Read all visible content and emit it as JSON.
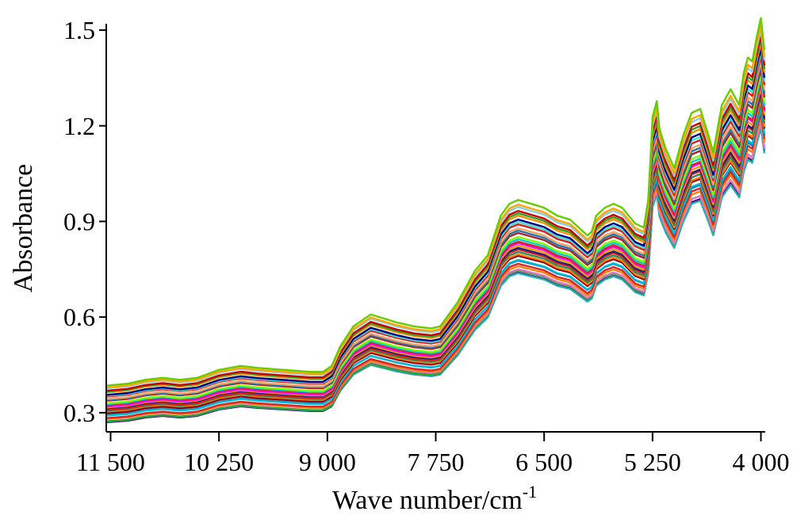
{
  "chart_data": {
    "type": "line",
    "title": "",
    "xlabel": "Wave number/cm",
    "xlabel_superscript": "-1",
    "ylabel": "Absorbance",
    "xlim": [
      11550,
      3950
    ],
    "ylim": [
      0.24,
      1.52
    ],
    "x_reversed": true,
    "grid": false,
    "legend": "none",
    "x_ticks": [
      11500,
      10250,
      9000,
      7750,
      6500,
      5250,
      4000
    ],
    "x_tick_labels": [
      "11 500",
      "10 250",
      "9 000",
      "7 750",
      "6 500",
      "5 250",
      "4 000"
    ],
    "y_ticks": [
      0.3,
      0.6,
      0.9,
      1.2,
      1.5
    ],
    "y_tick_labels": [
      "0.3",
      "0.6",
      "0.9",
      "1.2",
      "1.5"
    ],
    "x": [
      11550,
      11300,
      11100,
      10900,
      10700,
      10500,
      10250,
      10000,
      9800,
      9500,
      9200,
      9050,
      8950,
      8850,
      8700,
      8500,
      8350,
      8200,
      8000,
      7800,
      7700,
      7600,
      7500,
      7300,
      7150,
      7000,
      6900,
      6800,
      6650,
      6500,
      6350,
      6200,
      6100,
      6000,
      5950,
      5900,
      5800,
      5700,
      5600,
      5450,
      5350,
      5300,
      5270,
      5250,
      5200,
      5170,
      5100,
      5000,
      4900,
      4800,
      4700,
      4600,
      4550,
      4500,
      4450,
      4400,
      4350,
      4300,
      4250,
      4200,
      4150,
      4100,
      4050,
      4000,
      3960
    ],
    "base_spectrum": [
      0.27,
      0.275,
      0.285,
      0.29,
      0.285,
      0.29,
      0.31,
      0.32,
      0.315,
      0.31,
      0.305,
      0.305,
      0.32,
      0.37,
      0.42,
      0.45,
      0.44,
      0.43,
      0.42,
      0.415,
      0.42,
      0.45,
      0.48,
      0.56,
      0.6,
      0.7,
      0.73,
      0.74,
      0.73,
      0.72,
      0.7,
      0.69,
      0.67,
      0.65,
      0.66,
      0.7,
      0.72,
      0.73,
      0.72,
      0.68,
      0.67,
      0.74,
      0.86,
      0.95,
      0.99,
      0.92,
      0.87,
      0.82,
      0.9,
      0.96,
      0.97,
      0.9,
      0.86,
      0.92,
      0.98,
      1.0,
      1.02,
      1.0,
      0.98,
      1.06,
      1.1,
      1.09,
      1.15,
      1.2,
      1.12
    ],
    "series": [
      {
        "scale": 1.0,
        "offset": 0.0,
        "color": "#4b0082"
      },
      {
        "scale": 0.99,
        "offset": 0.005,
        "color": "#20b2aa"
      },
      {
        "scale": 1.01,
        "offset": 0.0,
        "color": "#2ca02c"
      },
      {
        "scale": 1.0,
        "offset": 0.01,
        "color": "#e377c2"
      },
      {
        "scale": 1.02,
        "offset": 0.005,
        "color": "#ff7f0e"
      },
      {
        "scale": 1.03,
        "offset": 0.005,
        "color": "#d62728"
      },
      {
        "scale": 1.03,
        "offset": 0.015,
        "color": "#1f77b4"
      },
      {
        "scale": 1.04,
        "offset": 0.01,
        "color": "#00bcd4"
      },
      {
        "scale": 1.05,
        "offset": 0.015,
        "color": "#8b0000"
      },
      {
        "scale": 1.05,
        "offset": 0.02,
        "color": "#ff7f0e"
      },
      {
        "scale": 1.06,
        "offset": 0.02,
        "color": "#2e8b57"
      },
      {
        "scale": 1.07,
        "offset": 0.02,
        "color": "#e31a1c"
      },
      {
        "scale": 1.07,
        "offset": 0.025,
        "color": "#1a237e"
      },
      {
        "scale": 1.08,
        "offset": 0.025,
        "color": "#ff9800"
      },
      {
        "scale": 1.09,
        "offset": 0.025,
        "color": "#ff00ff"
      },
      {
        "scale": 1.09,
        "offset": 0.03,
        "color": "#d62728"
      },
      {
        "scale": 1.1,
        "offset": 0.03,
        "color": "#00ced1"
      },
      {
        "scale": 1.11,
        "offset": 0.03,
        "color": "#7cfc00"
      },
      {
        "scale": 1.12,
        "offset": 0.035,
        "color": "#b22222"
      },
      {
        "scale": 1.13,
        "offset": 0.035,
        "color": "#1f77b4"
      },
      {
        "scale": 1.14,
        "offset": 0.035,
        "color": "#f4a460"
      },
      {
        "scale": 1.15,
        "offset": 0.04,
        "color": "#e31a1c"
      },
      {
        "scale": 1.16,
        "offset": 0.04,
        "color": "#40e0d0"
      },
      {
        "scale": 1.17,
        "offset": 0.04,
        "color": "#000080"
      },
      {
        "scale": 1.18,
        "offset": 0.045,
        "color": "#ff8c00"
      },
      {
        "scale": 1.19,
        "offset": 0.045,
        "color": "#2ca02c"
      },
      {
        "scale": 1.2,
        "offset": 0.045,
        "color": "#cc0000"
      },
      {
        "scale": 1.21,
        "offset": 0.05,
        "color": "#87ceeb"
      },
      {
        "scale": 1.22,
        "offset": 0.05,
        "color": "#ffa500"
      },
      {
        "scale": 1.24,
        "offset": 0.05,
        "color": "#66cc00"
      }
    ]
  }
}
